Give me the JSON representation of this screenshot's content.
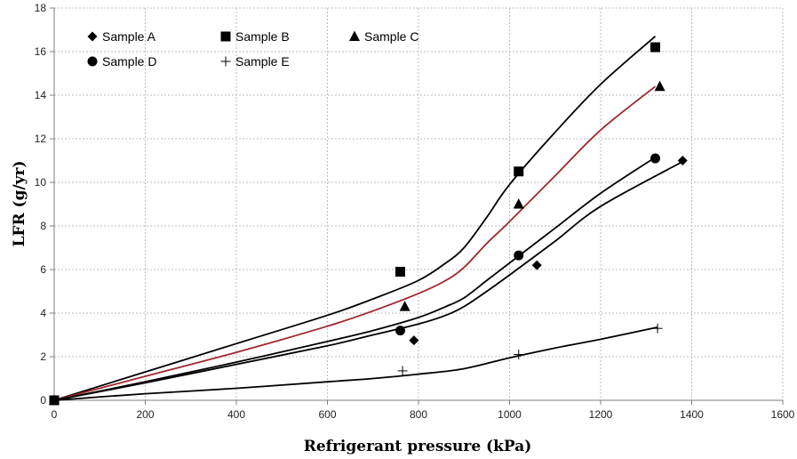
{
  "chart_data": {
    "type": "scatter",
    "title": "",
    "xlabel": "Refrigerant pressure (kPa)",
    "ylabel": "LFR (g/yr)",
    "xlim": [
      0,
      1600
    ],
    "ylim": [
      0,
      18
    ],
    "x_ticks": [
      0,
      200,
      400,
      600,
      800,
      1000,
      1200,
      1400,
      1600
    ],
    "y_ticks": [
      0,
      2,
      4,
      6,
      8,
      10,
      12,
      14,
      16,
      18
    ],
    "grid": true,
    "legend_position": "top-left",
    "series": [
      {
        "name": "Sample A",
        "marker": "diamond",
        "color": "#000000",
        "points": [
          [
            0,
            0
          ],
          [
            790,
            2.75
          ],
          [
            1060,
            6.2
          ],
          [
            1380,
            11.0
          ]
        ]
      },
      {
        "name": "Sample B",
        "marker": "square",
        "color": "#000000",
        "points": [
          [
            0,
            0
          ],
          [
            760,
            5.9
          ],
          [
            1020,
            10.5
          ],
          [
            1320,
            16.2
          ]
        ]
      },
      {
        "name": "Sample C",
        "marker": "triangle",
        "color": "#000000",
        "points": [
          [
            0,
            0
          ],
          [
            770,
            4.3
          ],
          [
            1020,
            9.0
          ],
          [
            1330,
            14.4
          ]
        ]
      },
      {
        "name": "Sample D",
        "marker": "circle",
        "color": "#000000",
        "points": [
          [
            0,
            0
          ],
          [
            760,
            3.2
          ],
          [
            1020,
            6.65
          ],
          [
            1320,
            11.1
          ]
        ]
      },
      {
        "name": "Sample E",
        "marker": "plus",
        "color": "#000000",
        "points": [
          [
            0,
            0
          ],
          [
            765,
            1.35
          ],
          [
            1020,
            2.1
          ],
          [
            1325,
            3.3
          ]
        ]
      }
    ],
    "fit_curves": [
      {
        "color": "#000000",
        "points": [
          [
            0,
            0
          ],
          [
            200,
            1.3
          ],
          [
            400,
            2.6
          ],
          [
            600,
            3.9
          ],
          [
            700,
            4.65
          ],
          [
            800,
            5.5
          ],
          [
            860,
            6.3
          ],
          [
            900,
            7.0
          ],
          [
            950,
            8.4
          ],
          [
            1000,
            9.9
          ],
          [
            1100,
            12.3
          ],
          [
            1200,
            14.5
          ],
          [
            1320,
            16.7
          ]
        ]
      },
      {
        "color": "#a0282d",
        "points": [
          [
            0,
            0
          ],
          [
            200,
            1.1
          ],
          [
            400,
            2.2
          ],
          [
            600,
            3.4
          ],
          [
            700,
            4.1
          ],
          [
            800,
            4.9
          ],
          [
            860,
            5.5
          ],
          [
            900,
            6.1
          ],
          [
            950,
            7.2
          ],
          [
            1000,
            8.2
          ],
          [
            1100,
            10.3
          ],
          [
            1200,
            12.4
          ],
          [
            1320,
            14.4
          ]
        ]
      },
      {
        "color": "#000000",
        "points": [
          [
            0,
            0
          ],
          [
            200,
            0.85
          ],
          [
            400,
            1.75
          ],
          [
            600,
            2.7
          ],
          [
            700,
            3.2
          ],
          [
            800,
            3.8
          ],
          [
            860,
            4.3
          ],
          [
            900,
            4.7
          ],
          [
            950,
            5.5
          ],
          [
            1000,
            6.3
          ],
          [
            1100,
            7.9
          ],
          [
            1200,
            9.5
          ],
          [
            1320,
            11.15
          ]
        ]
      },
      {
        "color": "#000000",
        "points": [
          [
            0,
            0
          ],
          [
            200,
            0.8
          ],
          [
            400,
            1.65
          ],
          [
            600,
            2.5
          ],
          [
            700,
            3.0
          ],
          [
            800,
            3.5
          ],
          [
            860,
            3.9
          ],
          [
            900,
            4.3
          ],
          [
            950,
            5.0
          ],
          [
            1000,
            5.75
          ],
          [
            1100,
            7.3
          ],
          [
            1200,
            8.9
          ],
          [
            1380,
            10.95
          ]
        ]
      },
      {
        "color": "#000000",
        "points": [
          [
            0,
            0
          ],
          [
            200,
            0.3
          ],
          [
            400,
            0.55
          ],
          [
            600,
            0.85
          ],
          [
            700,
            1.0
          ],
          [
            800,
            1.2
          ],
          [
            900,
            1.45
          ],
          [
            1000,
            1.95
          ],
          [
            1100,
            2.4
          ],
          [
            1200,
            2.8
          ],
          [
            1325,
            3.35
          ]
        ]
      }
    ]
  }
}
